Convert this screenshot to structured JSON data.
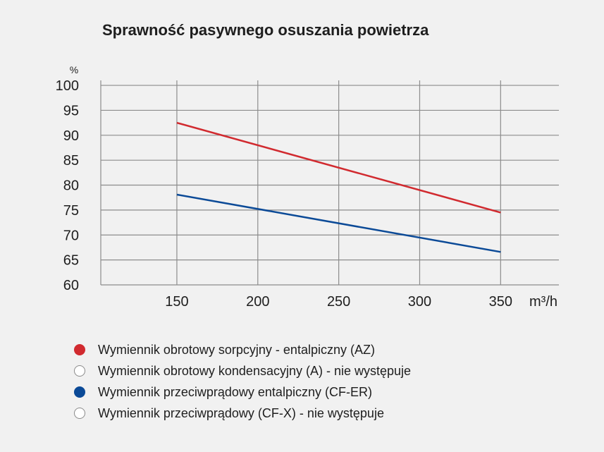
{
  "chart_data": {
    "type": "line",
    "title": "Sprawność pasywnego osuszania powietrza",
    "ylabel": "%",
    "xlabel": "m³/h",
    "x": [
      150,
      350
    ],
    "xticks": [
      150,
      200,
      250,
      300,
      350
    ],
    "yticks": [
      60,
      65,
      70,
      75,
      80,
      85,
      90,
      95,
      100
    ],
    "xlim": [
      103,
      386
    ],
    "ylim": [
      60,
      101
    ],
    "grid": true,
    "series": [
      {
        "name": "Wymiennik obrotowy sorpcyjny - entalpiczny (AZ)",
        "values": [
          92.5,
          74.5
        ],
        "color": "#d12a2f"
      },
      {
        "name": "Wymiennik przeciwprądowy entalpiczny (CF-ER)",
        "values": [
          78.1,
          66.6
        ],
        "color": "#0b4a97"
      }
    ]
  },
  "legend": [
    {
      "label": "Wymiennik obrotowy sorpcyjny - entalpiczny (AZ)",
      "filled": true,
      "color": "#d12a2f"
    },
    {
      "label": "Wymiennik obrotowy kondensacyjny (A) - nie występuje",
      "filled": false,
      "color": "#8a8a8a"
    },
    {
      "label": "Wymiennik przeciwprądowy entalpiczny (CF-ER)",
      "filled": true,
      "color": "#0b4a97"
    },
    {
      "label": "Wymiennik przeciwprądowy (CF-X) - nie występuje",
      "filled": false,
      "color": "#8a8a8a"
    }
  ]
}
